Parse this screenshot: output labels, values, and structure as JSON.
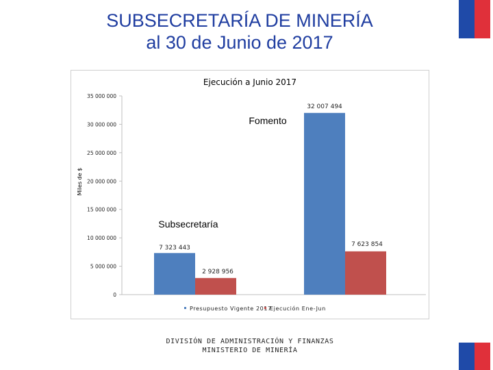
{
  "slide": {
    "title_line1": "SUBSECRETARÍA DE MINERÍA",
    "title_line2": "al 30 de Junio de 2017",
    "footer_line1": "DIVISIÓN DE ADMINISTRACIÓN Y FINANZAS",
    "footer_line2": "MINISTERIO DE MINERÍA"
  },
  "colors": {
    "title": "#1f3da0",
    "flag_blue": "#1f4aa8",
    "flag_red": "#e0303a",
    "series_presupuesto": "#4e7fbe",
    "series_ejecucion": "#c0504d"
  },
  "chart_data": {
    "type": "bar",
    "title": "Ejecución a Junio 2017",
    "xlabel": "",
    "ylabel": "Miles de $",
    "ylim": [
      0,
      35000000
    ],
    "yticks": [
      0,
      5000000,
      10000000,
      15000000,
      20000000,
      25000000,
      30000000,
      35000000
    ],
    "ytick_labels": [
      "0",
      "5 000 000",
      "10 000 000",
      "15 000 000",
      "20 000 000",
      "25 000 000",
      "30 000 000",
      "35 000 000"
    ],
    "categories": [
      "Subsecretaría",
      "Fomento"
    ],
    "series": [
      {
        "name": "Presupuesto Vigente 2017",
        "values": [
          7323443,
          32007494
        ],
        "labels": [
          "7 323 443",
          "32 007 494"
        ]
      },
      {
        "name": "Ejecución Ene-Jun",
        "values": [
          2928956,
          7623854
        ],
        "labels": [
          "2 928 956",
          "7 623 854"
        ]
      }
    ],
    "grid": false,
    "legend": "bottom"
  }
}
